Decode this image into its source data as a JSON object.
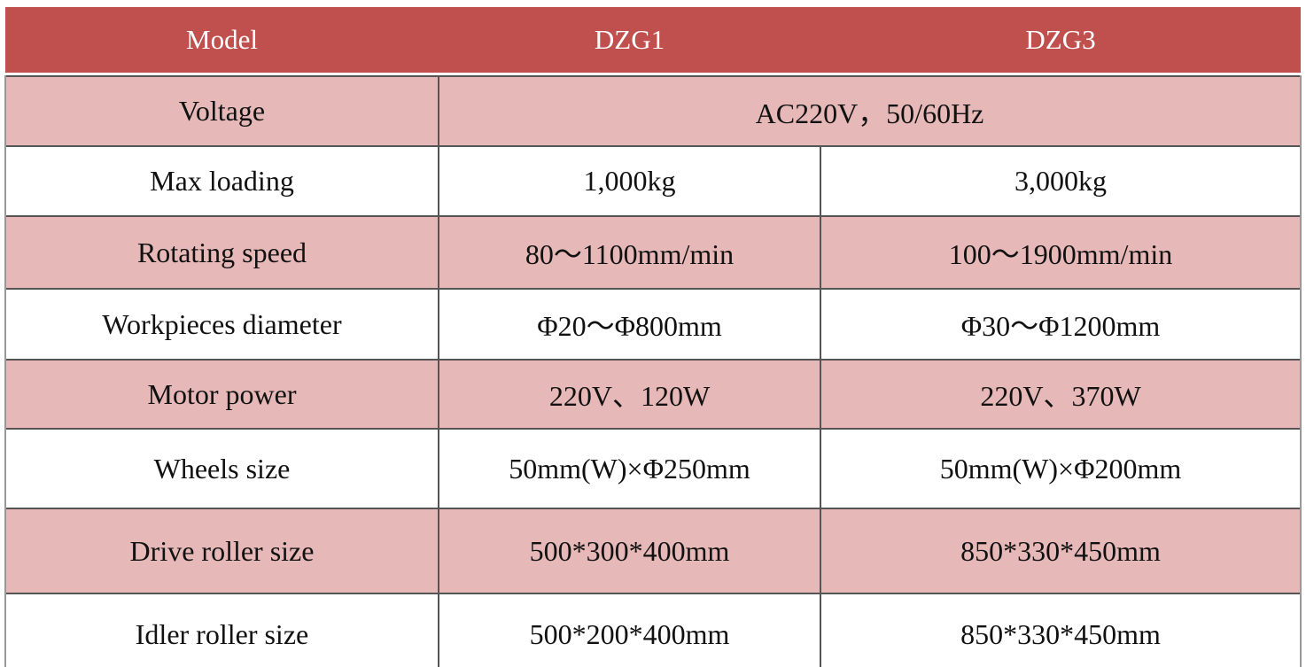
{
  "table": {
    "header": [
      "Model",
      "DZG1",
      "DZG3"
    ],
    "rows": [
      [
        "Voltage",
        "AC220V，50/60Hz"
      ],
      [
        "Max loading",
        "1,000kg",
        "3,000kg"
      ],
      [
        "Rotating speed",
        "80～1100mm/min",
        "100～1900mm/min"
      ],
      [
        "Workpieces diameter",
        "Φ20～Φ800mm",
        "Φ30～Φ1200mm"
      ],
      [
        "Motor power",
        "220V、120W",
        "220V、370W"
      ],
      [
        "Wheels size",
        "50mm(W)×Φ250mm",
        "50mm(W)×Φ200mm"
      ],
      [
        "Drive roller size",
        "500*300*400mm",
        "850*330*450mm"
      ],
      [
        "Idler roller size",
        "500*200*400mm",
        "850*330*450mm"
      ]
    ]
  }
}
